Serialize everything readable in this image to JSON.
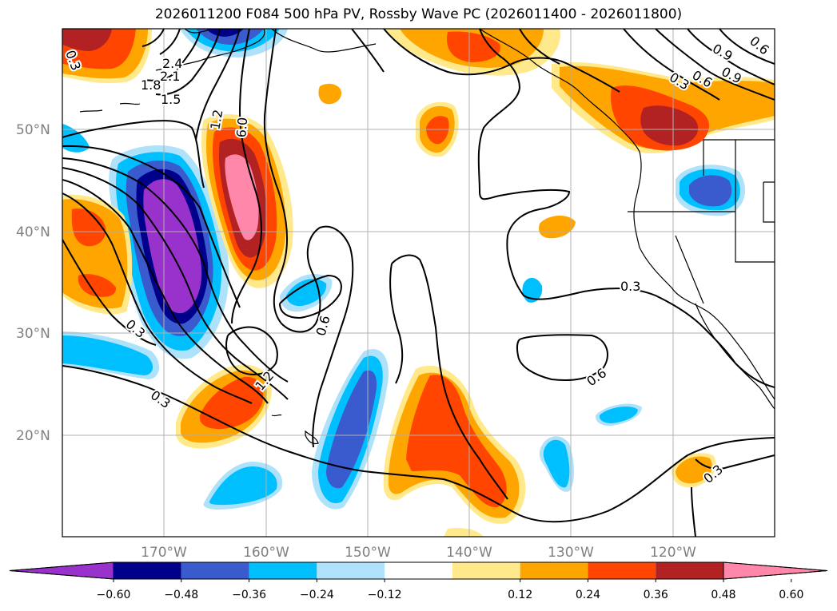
{
  "title": "2026011200 F084 500 hPa PV, Rossby Wave PC (2026011400 - 2026011800)",
  "map": {
    "lat_labels": [
      "50°N",
      "40°N",
      "30°N",
      "20°N"
    ],
    "lon_labels": [
      "170°W",
      "160°W",
      "150°W",
      "140°W",
      "130°W",
      "120°W"
    ]
  },
  "contour_labels": [
    "2.4",
    "2.1",
    "1.8",
    "1.5",
    "1.2",
    "6.0",
    "0.3",
    "0.6",
    "0.9",
    "0.3",
    "0.6",
    "0.9",
    "0.3",
    "0.6",
    "0.3",
    "0.6",
    "1.2",
    "0.3",
    "0.3"
  ],
  "colorbar": {
    "tick_labels": [
      "−0.60",
      "−0.48",
      "−0.36",
      "−0.24",
      "−0.12",
      "0.12",
      "0.24",
      "0.36",
      "0.48",
      "0.60"
    ],
    "colors": [
      "#9932CC",
      "#00008B",
      "#3A5BCD",
      "#00BFFF",
      "#ADE2FA",
      "#FFFFFF",
      "#FFE98A",
      "#FFA500",
      "#FF4500",
      "#B22222",
      "#FF88AA"
    ]
  }
}
